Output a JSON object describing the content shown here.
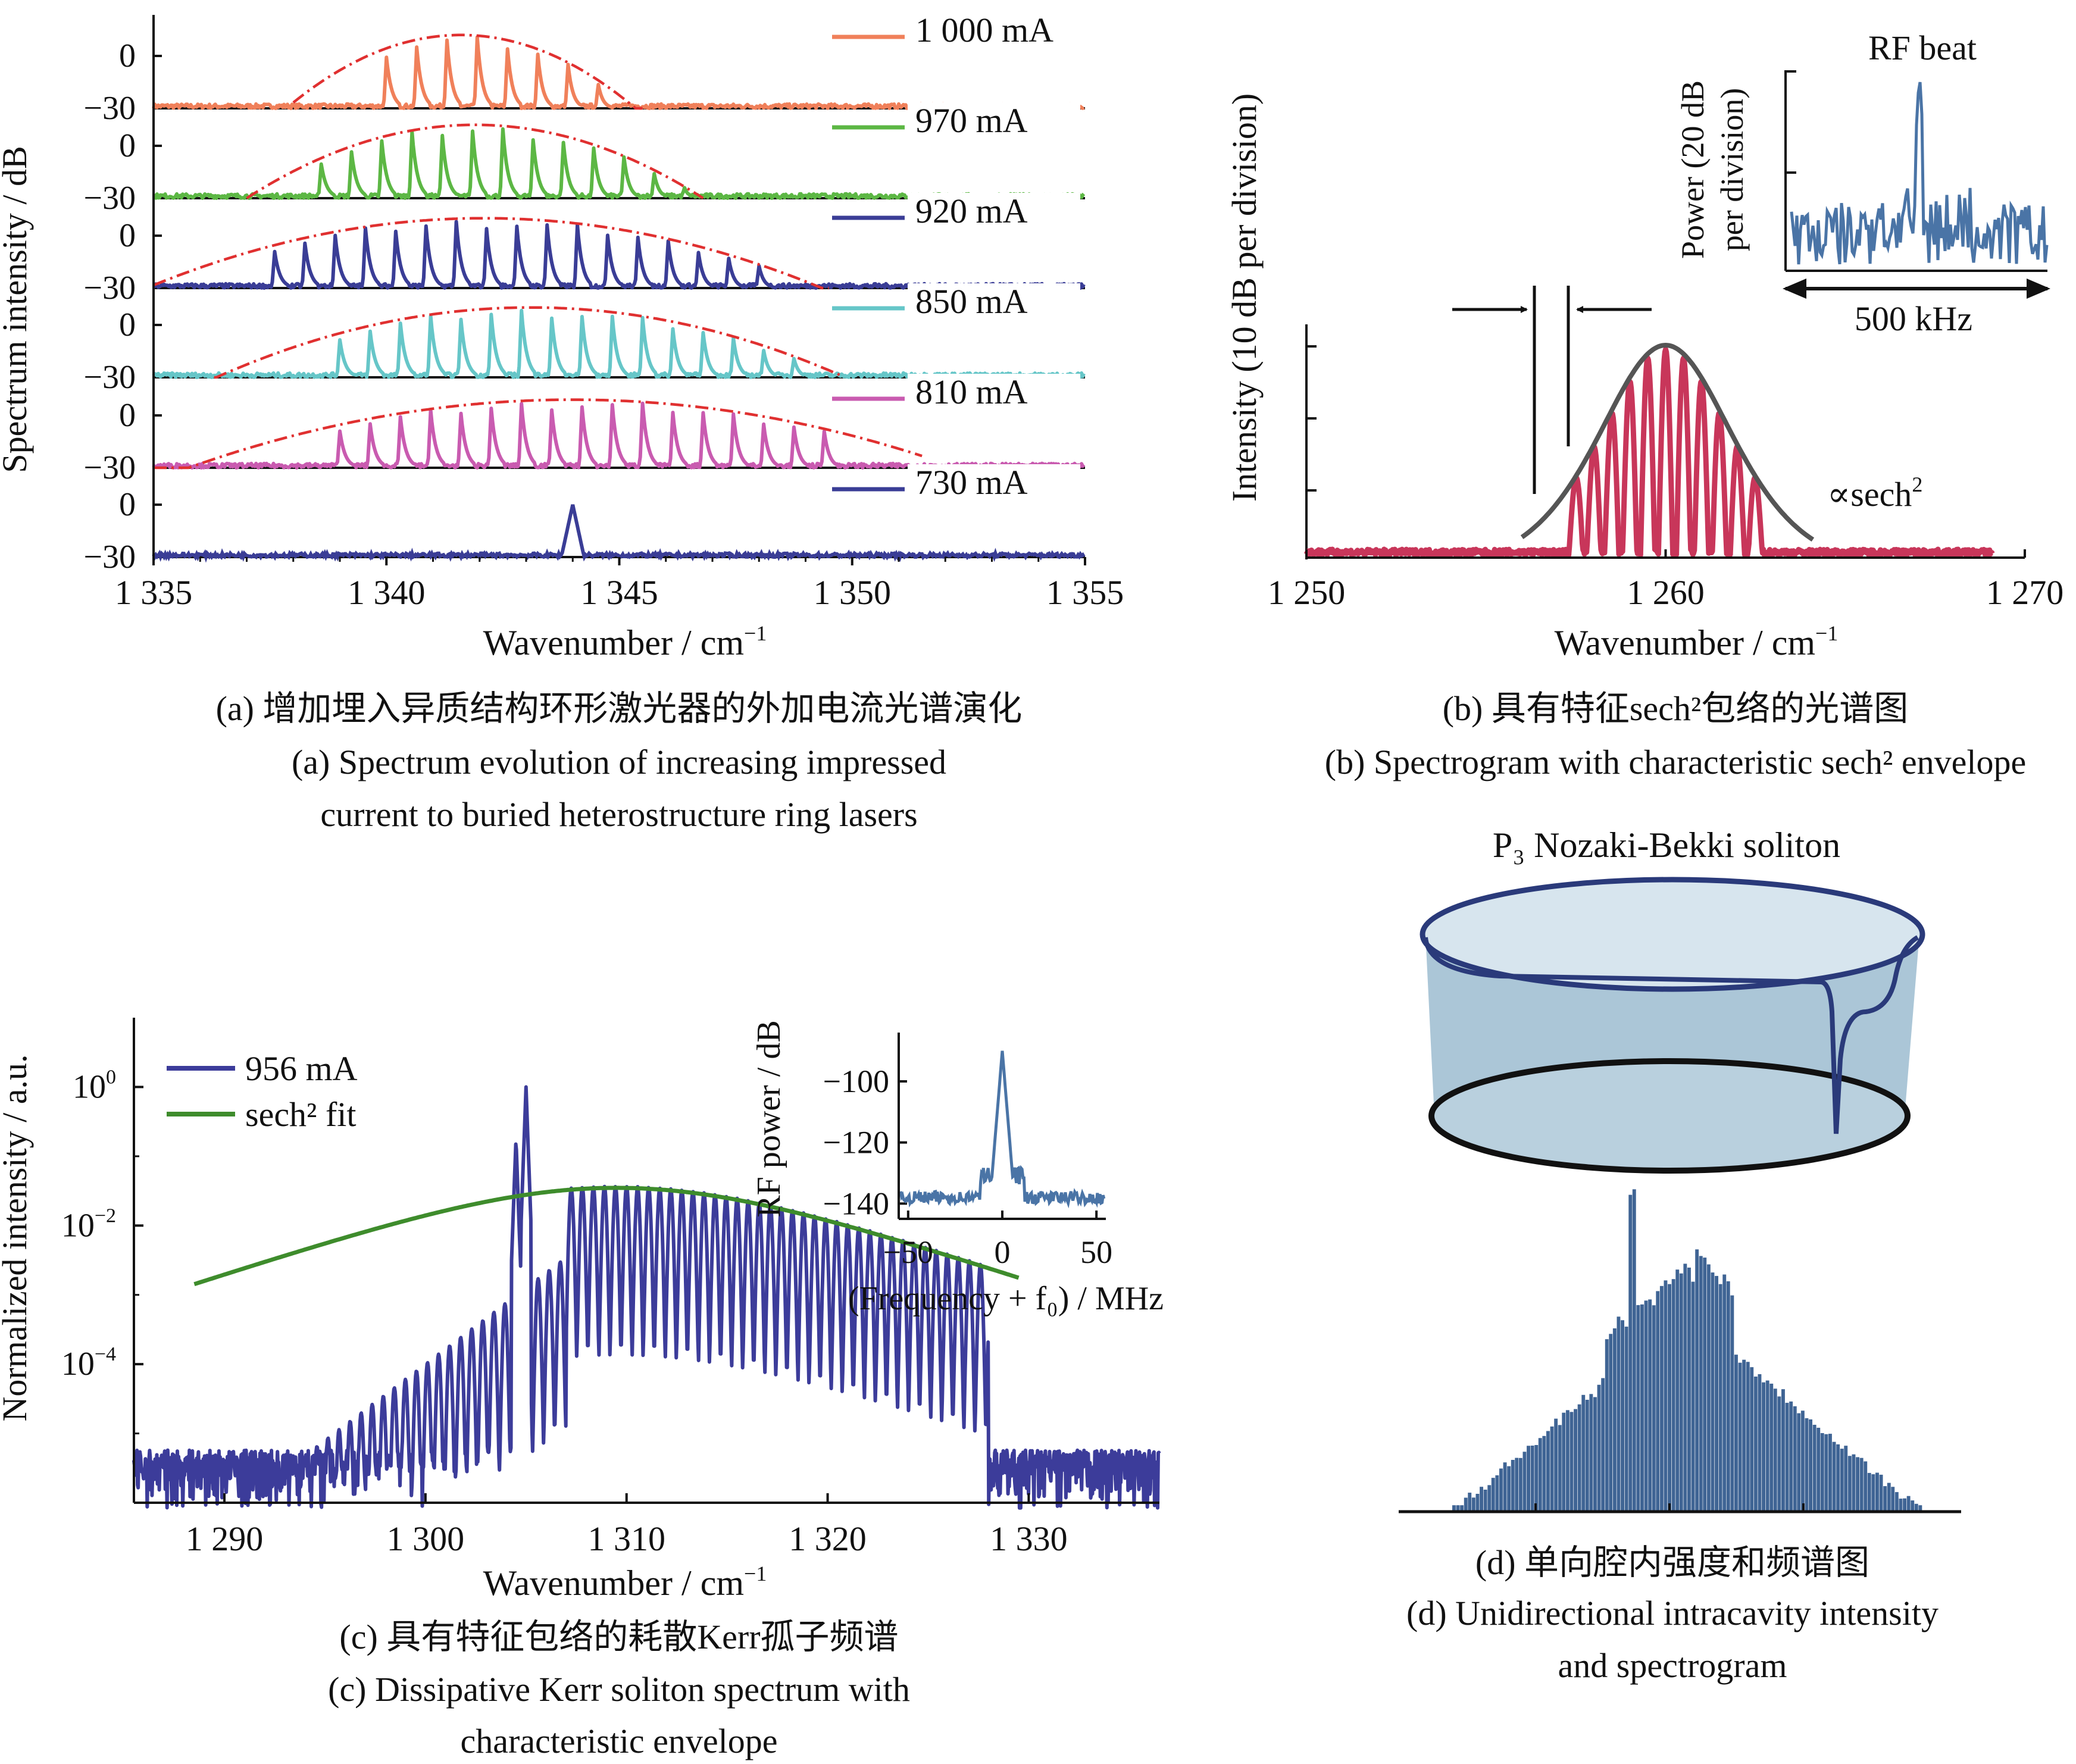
{
  "panels": {
    "a": {
      "ylabel": "Spectrum intensity / dB",
      "xlabel": "Wavenumber / cm",
      "xlabel_sup": "−1",
      "xticks": [
        "1 335",
        "1 340",
        "1 345",
        "1 350",
        "1 355"
      ],
      "ytick_top": "0",
      "ytick_bottom": "−30",
      "caption_cn": "(a) 增加埋入异质结构环形激光器的外加电流光谱演化",
      "caption_en_1": "(a) Spectrum evolution of increasing impressed",
      "caption_en_2": "current to buried heterostructure ring lasers"
    },
    "b": {
      "ylabel": "Intensity (10 dB per division)",
      "xlabel": "Wavenumber / cm",
      "xlabel_sup": "−1",
      "xticks": [
        "1 250",
        "1 260",
        "1 270"
      ],
      "annotation": "∝sech",
      "annotation_sup": "2",
      "inset_title": "RF beat",
      "inset_ylabel_1": "Power (20 dB",
      "inset_ylabel_2": "per division)",
      "inset_span": "500 kHz",
      "caption_cn": "(b) 具有特征sech²包络的光谱图",
      "caption_en": "(b) Spectrogram with characteristic sech² envelope"
    },
    "c": {
      "ylabel": "Normalized intensity / a.u.",
      "xlabel": "Wavenumber / cm",
      "xlabel_sup": "−1",
      "xticks": [
        "1 290",
        "1 300",
        "1 310",
        "1 320",
        "1 330"
      ],
      "yticks": [
        {
          "base": "10",
          "exp": "0"
        },
        {
          "base": "10",
          "exp": "−2"
        },
        {
          "base": "10",
          "exp": "−4"
        }
      ],
      "legend": [
        "956 mA",
        "sech² fit"
      ],
      "inset_ylabel": "RF power / dB",
      "inset_yticks": [
        "−100",
        "−120",
        "−140"
      ],
      "inset_xticks": [
        "−50",
        "0",
        "50"
      ],
      "inset_xlabel": "(Frequency + f₀) / MHz",
      "caption_cn": "(c) 具有特征包络的耗散Kerr孤子频谱",
      "caption_en_1": "(c) Dissipative Kerr soliton spectrum with",
      "caption_en_2": "characteristic envelope"
    },
    "d": {
      "title": "P₃ Nozaki-Bekki soliton",
      "caption_cn": "(d) 单向腔内强度和频谱图",
      "caption_en_1": "(d) Unidirectional intracavity intensity",
      "caption_en_2": "and spectrogram"
    }
  },
  "chart_data": [
    {
      "panel": "a",
      "type": "line",
      "title": "",
      "xlabel": "Wavenumber / cm−1",
      "ylabel": "Spectrum intensity / dB",
      "xlim": [
        1335,
        1355
      ],
      "ylim_per_trace": [
        -30,
        0
      ],
      "series": [
        {
          "name": "1 000 mA",
          "color": "#f0805a",
          "center": 1341.6,
          "span": [
            1338.0,
            1345.5
          ],
          "comb_start": 1340.0,
          "comb_spacing": 0.65,
          "teeth": 9,
          "peak_db": 12
        },
        {
          "name": "970 mA",
          "color": "#5cb744",
          "center": 1341.9,
          "span": [
            1337.0,
            1346.8
          ],
          "comb_start": 1338.6,
          "comb_spacing": 0.65,
          "teeth": 14,
          "peak_db": 12
        },
        {
          "name": "920 mA",
          "color": "#3a3d96",
          "center": 1342.1,
          "span": [
            1335.0,
            1349.5
          ],
          "comb_start": 1337.6,
          "comb_spacing": 0.65,
          "teeth": 17,
          "peak_db": 10
        },
        {
          "name": "850 mA",
          "color": "#66c6c8",
          "center": 1343.1,
          "span": [
            1336.3,
            1349.8
          ],
          "comb_start": 1339.0,
          "comb_spacing": 0.65,
          "teeth": 16,
          "peak_db": 10
        },
        {
          "name": "810 mA",
          "color": "#c95bb0",
          "center": 1344.0,
          "span": [
            1335.0,
            1351.5
          ],
          "comb_start": 1339.0,
          "comb_spacing": 0.65,
          "teeth": 17,
          "peak_db": 9
        },
        {
          "name": "730 mA",
          "color": "#3a3d96",
          "single_peak": 1344.0,
          "peak_db": 0
        }
      ]
    },
    {
      "panel": "b",
      "type": "line",
      "title": "",
      "xlabel": "Wavenumber / cm−1",
      "ylabel": "Intensity (10 dB per division)",
      "xlim": [
        1250,
        1270
      ],
      "envelope": {
        "type": "sech2",
        "center": 1260.0,
        "half_width": 4.0
      },
      "series": [
        {
          "color": "#c8365a",
          "comb_start": 1257.5,
          "comb_spacing": 0.5,
          "teeth": 11
        }
      ],
      "inset": {
        "title": "RF beat",
        "span_label": "500 kHz",
        "peak_position": 0.5
      }
    },
    {
      "panel": "c",
      "type": "line",
      "title": "",
      "xlabel": "Wavenumber / cm−1",
      "ylabel": "Normalized intensity / a.u.",
      "xlim": [
        1285.5,
        1336.5
      ],
      "yscale": "log",
      "ylim": [
        1e-06,
        10.0
      ],
      "series": [
        {
          "name": "956 mA",
          "color": "#3c3c9a",
          "main_peaks": [
            [
              1304.5,
              0.18
            ],
            [
              1305.0,
              1.0
            ]
          ],
          "comb_spacing": 0.55
        },
        {
          "name": "sech² fit",
          "color": "#3e8c2c",
          "center": 1309.5,
          "peak": 0.035,
          "edges": [
            1288.5,
            1329.5
          ]
        }
      ],
      "inset": {
        "xlabel": "(Frequency + f₀) / MHz",
        "ylabel": "RF power / dB",
        "xlim": [
          -55,
          55
        ],
        "ylim": [
          -145,
          -85
        ],
        "peak": [
          0,
          -90
        ],
        "noise_floor": -140
      }
    },
    {
      "panel": "d",
      "type": "bar",
      "title": "P₃ Nozaki-Bekki soliton",
      "description_values": {
        "bins": 120,
        "envelope": "triangular",
        "main_peak_bin": 0.38
      }
    }
  ]
}
